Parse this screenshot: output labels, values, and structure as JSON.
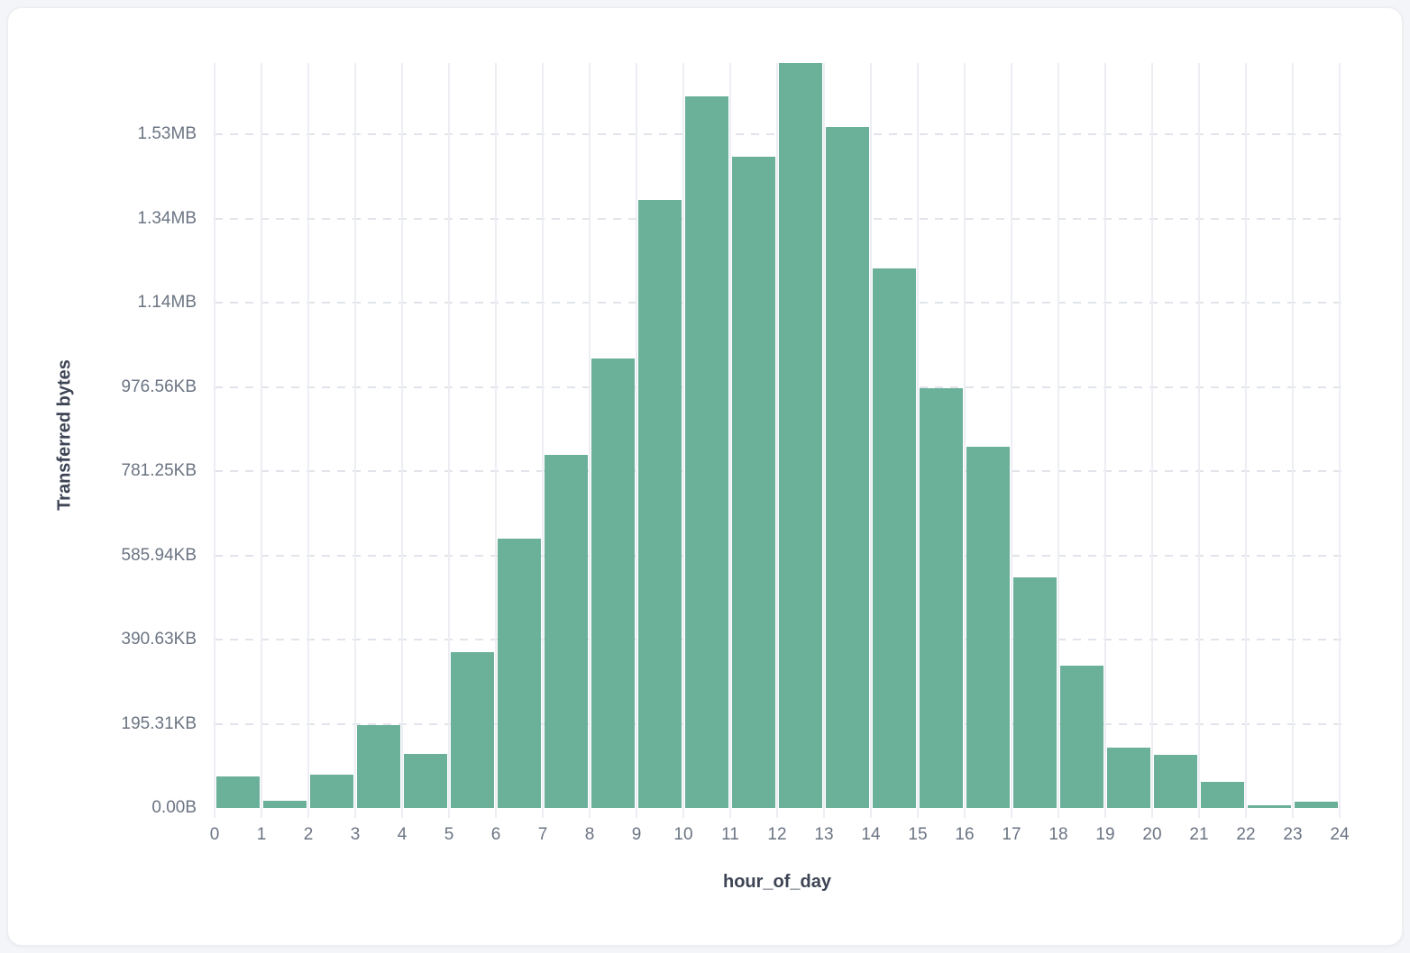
{
  "page": {
    "background_color": "#f4f5f8",
    "card_background_color": "#ffffff"
  },
  "chart_data": {
    "type": "bar",
    "title": "",
    "xlabel": "hour_of_day",
    "ylabel": "Transferred bytes",
    "x_bin_start": [
      0,
      1,
      2,
      3,
      4,
      5,
      6,
      7,
      8,
      9,
      10,
      11,
      12,
      13,
      14,
      15,
      16,
      17,
      18,
      19,
      20,
      21,
      22,
      23
    ],
    "values_bytes": [
      75000,
      16500,
      78500,
      197000,
      128500,
      371000,
      640000,
      838000,
      1068000,
      1443000,
      1690000,
      1546000,
      1768000,
      1617000,
      1281000,
      997000,
      858000,
      548000,
      337000,
      143000,
      127000,
      61000,
      6000,
      15000
    ],
    "x_tick_labels": [
      "0",
      "1",
      "2",
      "3",
      "4",
      "5",
      "6",
      "7",
      "8",
      "9",
      "10",
      "11",
      "12",
      "13",
      "14",
      "15",
      "16",
      "17",
      "18",
      "19",
      "20",
      "21",
      "22",
      "23",
      "24"
    ],
    "y_ticks": [
      {
        "label": "0.00B",
        "bytes": 0
      },
      {
        "label": "195.31KB",
        "bytes": 200000
      },
      {
        "label": "390.63KB",
        "bytes": 400000
      },
      {
        "label": "585.94KB",
        "bytes": 600000
      },
      {
        "label": "781.25KB",
        "bytes": 800000
      },
      {
        "label": "976.56KB",
        "bytes": 1000000
      },
      {
        "label": "1.14MB",
        "bytes": 1200000
      },
      {
        "label": "1.34MB",
        "bytes": 1400000
      },
      {
        "label": "1.53MB",
        "bytes": 1600000
      }
    ],
    "xlim": [
      0,
      24
    ],
    "ylim_bytes": [
      0,
      1769000
    ],
    "grid": true,
    "legend": false,
    "bar_color": "#6bb098",
    "colors": {
      "vertical_gridline": "#edeef3",
      "horizontal_gridline_dashed": "#e1e4eb",
      "tick_label_text": "#6b7483",
      "axis_title_text": "#3d4454"
    }
  }
}
